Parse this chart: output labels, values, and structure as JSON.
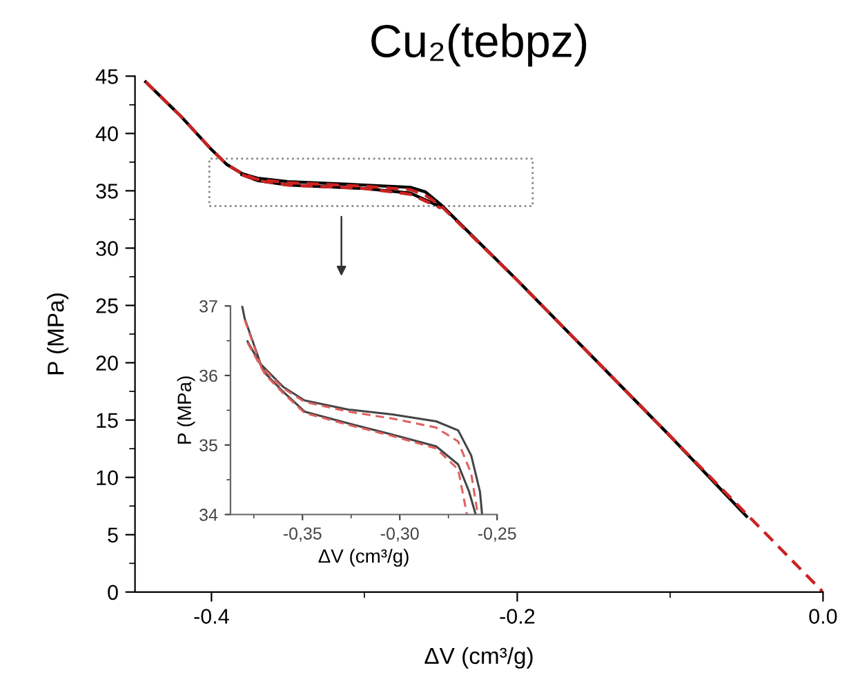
{
  "chart_data": [
    {
      "type": "line",
      "title": "Cu₂(tebpz)",
      "xlabel": "ΔV (cm³/g)",
      "ylabel": "P (MPa)",
      "xlim": [
        -0.45,
        0.0
      ],
      "ylim": [
        0,
        45
      ],
      "xticks": [
        {
          "value": -0.4,
          "label": "-0.4"
        },
        {
          "value": -0.3,
          "label": null
        },
        {
          "value": -0.2,
          "label": "-0.2"
        },
        {
          "value": -0.1,
          "label": null
        },
        {
          "value": 0.0,
          "label": "0.0"
        }
      ],
      "yticks": [
        0,
        {
          "value": 2.5,
          "label": null
        },
        5,
        {
          "value": 7.5,
          "label": null
        },
        10,
        {
          "value": 12.5,
          "label": null
        },
        15,
        {
          "value": 17.5,
          "label": null
        },
        20,
        {
          "value": 22.5,
          "label": null
        },
        25,
        {
          "value": 27.5,
          "label": null
        },
        30,
        {
          "value": 32.5,
          "label": null
        },
        35,
        {
          "value": 37.5,
          "label": null
        },
        40,
        {
          "value": 42.5,
          "label": null
        },
        45
      ],
      "legend": false,
      "grid": false,
      "series": [
        {
          "color": "#000000",
          "line_style": "solid",
          "x": [
            -0.443,
            -0.42,
            -0.4,
            -0.39,
            -0.38,
            -0.37,
            -0.35,
            -0.3,
            -0.27,
            -0.26,
            -0.25,
            -0.2,
            -0.1,
            -0.05
          ],
          "values": [
            44.5,
            41.5,
            38.6,
            37.3,
            36.5,
            36.1,
            35.8,
            35.5,
            35.3,
            34.9,
            33.8,
            27.2,
            13.6,
            6.6
          ]
        },
        {
          "color": "#000000",
          "line_style": "solid",
          "x": [
            -0.38,
            -0.37,
            -0.35,
            -0.3,
            -0.27,
            -0.26,
            -0.25
          ],
          "values": [
            36.4,
            35.9,
            35.5,
            35.2,
            34.8,
            34.2,
            33.6
          ]
        },
        {
          "color": "#cc2222",
          "line_style": "dashed",
          "x": [
            -0.443,
            -0.42,
            -0.4,
            -0.39,
            -0.38,
            -0.37,
            -0.35,
            -0.3,
            -0.27,
            -0.26,
            -0.25,
            -0.2,
            -0.1,
            0.0
          ],
          "values": [
            44.5,
            41.5,
            38.6,
            37.3,
            36.5,
            36.0,
            35.7,
            35.4,
            35.1,
            34.6,
            33.7,
            27.2,
            13.6,
            0.0
          ]
        },
        {
          "color": "#cc2222",
          "line_style": "dashed",
          "x": [
            -0.38,
            -0.37,
            -0.35,
            -0.3,
            -0.27,
            -0.26,
            -0.25
          ],
          "values": [
            36.4,
            35.9,
            35.5,
            35.2,
            34.7,
            34.1,
            33.5
          ]
        }
      ]
    },
    {
      "type": "line",
      "xlabel": "ΔV (cm³/g)",
      "ylabel": "P (MPa)",
      "xlim": [
        -0.387,
        -0.25
      ],
      "ylim": [
        34,
        37
      ],
      "xticks": [
        {
          "value": -0.375,
          "label": null
        },
        {
          "value": -0.35,
          "label": "-0,35"
        },
        {
          "value": -0.325,
          "label": null
        },
        {
          "value": -0.3,
          "label": "-0,30"
        },
        {
          "value": -0.275,
          "label": null
        },
        {
          "value": -0.25,
          "label": "-0,25"
        }
      ],
      "yticks": [
        34,
        {
          "value": 34.5,
          "label": null
        },
        35,
        {
          "value": 35.5,
          "label": null
        },
        36,
        {
          "value": 36.5,
          "label": null
        },
        37
      ],
      "legend": false,
      "grid": false,
      "series": [
        {
          "color": "#444444",
          "line_style": "solid",
          "x": [
            -0.381,
            -0.3797,
            -0.3714,
            -0.3601,
            -0.3489,
            -0.3264,
            -0.3038,
            -0.2813,
            -0.27,
            -0.2633,
            -0.2588,
            -0.2577
          ],
          "values": [
            37.0,
            36.82,
            36.16,
            35.84,
            35.64,
            35.51,
            35.44,
            35.34,
            35.21,
            34.85,
            34.33,
            34.0
          ]
        },
        {
          "color": "#444444",
          "line_style": "solid",
          "x": [
            -0.3782,
            -0.3691,
            -0.3601,
            -0.3489,
            -0.3264,
            -0.3038,
            -0.2813,
            -0.27,
            -0.2644,
            -0.261
          ],
          "values": [
            36.49,
            36.03,
            35.77,
            35.48,
            35.31,
            35.15,
            34.98,
            34.72,
            34.33,
            34.0
          ]
        },
        {
          "color": "#e06060",
          "line_style": "dashed",
          "x": [
            -0.3797,
            -0.3714,
            -0.3601,
            -0.3489,
            -0.3264,
            -0.3038,
            -0.2813,
            -0.27,
            -0.2633,
            -0.2599
          ],
          "values": [
            36.8,
            36.14,
            35.82,
            35.62,
            35.48,
            35.38,
            35.25,
            35.05,
            34.59,
            34.0
          ]
        },
        {
          "color": "#e06060",
          "line_style": "dashed",
          "x": [
            -0.3782,
            -0.3691,
            -0.3601,
            -0.3489,
            -0.3264,
            -0.3038,
            -0.2813,
            -0.27,
            -0.2655
          ],
          "values": [
            36.47,
            36.01,
            35.75,
            35.46,
            35.29,
            35.13,
            34.95,
            34.65,
            34.0
          ]
        }
      ]
    }
  ]
}
